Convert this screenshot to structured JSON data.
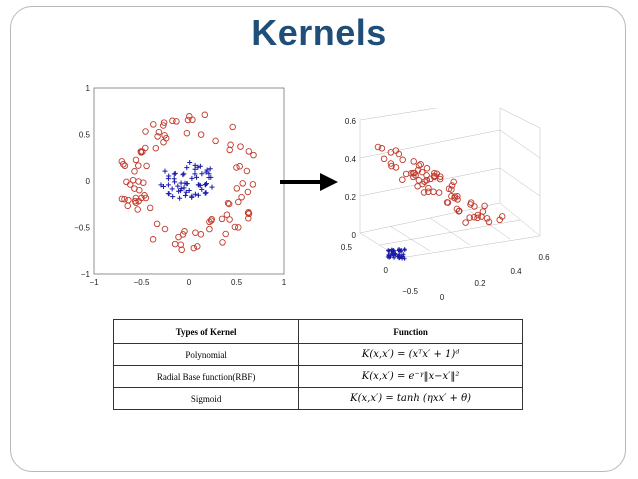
{
  "slide": {
    "title": "Kernels"
  },
  "figures": {
    "plot2d": {
      "x_ticks": [
        "−1",
        "−0.5",
        "0",
        "0.5",
        "1"
      ],
      "y_ticks": [
        "1",
        "0.5",
        "0",
        "−0.5",
        "−1"
      ]
    },
    "plot3d": {
      "z_ticks": [
        "0.6",
        "0.4",
        "0.2",
        "0"
      ],
      "y_ticks": [
        "0.5",
        "0",
        "−0.5"
      ],
      "x_ticks": [
        "0",
        "0.2",
        "0.4",
        "0.6"
      ]
    }
  },
  "table": {
    "headers": [
      "Types of Kernel",
      "Function"
    ],
    "rows": [
      {
        "type": "Polynomial",
        "function": "K(x,x′) = (xᵀx′ + 1)ᵈ"
      },
      {
        "type": "Radial Base function(RBF)",
        "function": "K(x,x′) = e⁻ᵞ‖x−x′‖²"
      },
      {
        "type": "Sigmoid",
        "function": "K(x,x′) = tanh (ηxx′ + θ)"
      }
    ]
  },
  "colors": {
    "title": "#1f4e79",
    "circle_marker": "#c0392b",
    "plus_marker": "#1a1aa8"
  }
}
